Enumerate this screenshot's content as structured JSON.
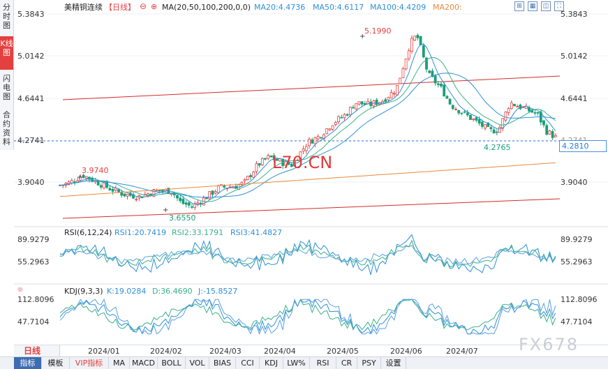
{
  "side_tabs": [
    {
      "label": "分时图",
      "active": false
    },
    {
      "label": "K线图",
      "active": true
    },
    {
      "label": "闪电图",
      "active": false
    },
    {
      "label": "合约资料",
      "active": false
    }
  ],
  "header": {
    "symbol": "美精铜连续",
    "period": "【日线】",
    "ma_label": "MA(20,50,100,200,0,0)",
    "ma20": "MA20:4.4736",
    "ma50": "MA50:4.6117",
    "ma100": "MA100:4.4209",
    "ma200": "MA200:"
  },
  "top_icons": [
    "expand-icon",
    "grid-icon",
    "split-icon",
    "fullscreen-icon",
    "close-icon"
  ],
  "price_axis": {
    "left_labels": [
      "5.3843",
      "5.0142",
      "4.6441",
      "4.2741",
      "3.9040"
    ],
    "right_labels": [
      "5.3843",
      "5.0142",
      "4.6441",
      "4.2741",
      "3.9040"
    ],
    "current_price_badge": "4.2810",
    "last_close_label": "4.2765"
  },
  "annotations": {
    "high": "5.1990",
    "local_high": "3.9740",
    "low": "3.6550"
  },
  "rsi": {
    "title": "RSI(6,12,24)",
    "rsi1": "RSI1:20.7419",
    "rsi2": "RSI2:33.1791",
    "rsi3": "RSI3:41.4827",
    "levels": [
      "89.9279",
      "55.2963"
    ]
  },
  "kdj": {
    "title": "KDJ(9,3,3)",
    "k": "K:19.0284",
    "d": "D:36.4690",
    "j": "J:-15.8527",
    "levels": [
      "112.8096",
      "47.7104"
    ]
  },
  "x_axis": {
    "period_label": "日线",
    "months": [
      "2024/01",
      "2024/02",
      "2024/03",
      "2024/04",
      "2024/05",
      "2024/06",
      "2024/07"
    ]
  },
  "bottom_tabs": [
    "指标",
    "模板",
    "VIP指标",
    "MA",
    "MACD",
    "BOLL",
    "VOL",
    "BIAS",
    "CCI",
    "KDJ",
    "LW%",
    "RSI",
    "CR",
    "PSY",
    "设置"
  ],
  "watermark": "FX678",
  "center_watermark": "L70.CN",
  "colors": {
    "up": "#e54040",
    "down": "#1a9e77",
    "ma20": "#2f8fd8",
    "ma50": "#3ab08a",
    "ma100": "#2f8fd8",
    "ma200": "#e8893a",
    "channel": "#d42a2a"
  },
  "chart_data": {
    "type": "candlestick",
    "x_range": [
      "2023-12-18",
      "2024-07-24"
    ],
    "y_range": [
      3.6,
      5.42
    ],
    "close_path": [
      [
        "2023-12-18",
        3.87
      ],
      [
        "2023-12-22",
        3.89
      ],
      [
        "2023-12-28",
        3.96
      ],
      [
        "2024-01-03",
        3.9
      ],
      [
        "2024-01-09",
        3.84
      ],
      [
        "2024-01-15",
        3.79
      ],
      [
        "2024-01-22",
        3.77
      ],
      [
        "2024-01-29",
        3.82
      ],
      [
        "2024-02-05",
        3.82
      ],
      [
        "2024-02-09",
        3.72
      ],
      [
        "2024-02-14",
        3.68
      ],
      [
        "2024-02-20",
        3.76
      ],
      [
        "2024-02-26",
        3.85
      ],
      [
        "2024-03-04",
        3.86
      ],
      [
        "2024-03-08",
        3.89
      ],
      [
        "2024-03-14",
        4.05
      ],
      [
        "2024-03-19",
        4.12
      ],
      [
        "2024-03-25",
        4.07
      ],
      [
        "2024-03-29",
        4.05
      ],
      [
        "2024-04-05",
        4.25
      ],
      [
        "2024-04-10",
        4.3
      ],
      [
        "2024-04-16",
        4.42
      ],
      [
        "2024-04-22",
        4.5
      ],
      [
        "2024-04-26",
        4.6
      ],
      [
        "2024-05-02",
        4.58
      ],
      [
        "2024-05-08",
        4.62
      ],
      [
        "2024-05-14",
        4.72
      ],
      [
        "2024-05-20",
        5.12
      ],
      [
        "2024-05-23",
        5.2
      ],
      [
        "2024-05-28",
        4.85
      ],
      [
        "2024-06-03",
        4.72
      ],
      [
        "2024-06-07",
        4.58
      ],
      [
        "2024-06-13",
        4.5
      ],
      [
        "2024-06-19",
        4.42
      ],
      [
        "2024-06-24",
        4.35
      ],
      [
        "2024-06-28",
        4.36
      ],
      [
        "2024-07-03",
        4.6
      ],
      [
        "2024-07-09",
        4.55
      ],
      [
        "2024-07-15",
        4.5
      ],
      [
        "2024-07-19",
        4.35
      ],
      [
        "2024-07-24",
        4.28
      ]
    ]
  }
}
